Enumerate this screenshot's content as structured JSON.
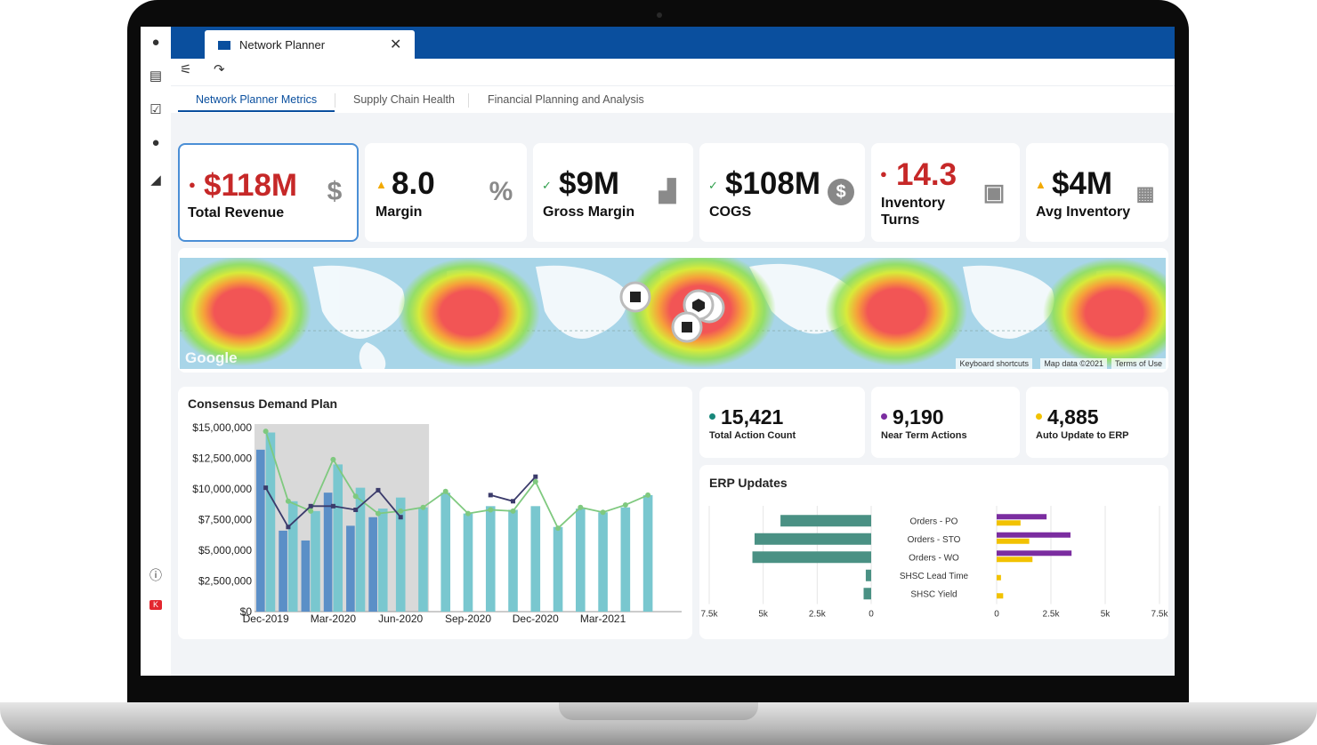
{
  "app": {
    "tab_title": "Network Planner",
    "close_glyph": "✕"
  },
  "tabs": [
    {
      "label": "Network Planner Metrics",
      "active": true
    },
    {
      "label": "Supply Chain Health",
      "active": false
    },
    {
      "label": "Financial Planning and Analysis",
      "active": false
    }
  ],
  "kpis": [
    {
      "value": "$118M",
      "label": "Total Revenue",
      "indicator": "●",
      "status": "red",
      "icon": "hand-dollar-icon"
    },
    {
      "value": "8.0",
      "label": "Margin",
      "indicator": "▲",
      "status": "orange",
      "icon": "percent-icon"
    },
    {
      "value": "$9M",
      "label": "Gross Margin",
      "indicator": "✓",
      "status": "green",
      "icon": "bar-chart-up-icon"
    },
    {
      "value": "$108M",
      "label": "COGS",
      "indicator": "✓",
      "status": "green",
      "icon": "dollar-coin-icon"
    },
    {
      "value": "14.3",
      "label": "Inventory Turns",
      "indicator": "●",
      "status": "red",
      "icon": "box-icon"
    },
    {
      "value": "$4M",
      "label": "Avg Inventory",
      "indicator": "▲",
      "status": "orange",
      "icon": "boxes-icon"
    }
  ],
  "map": {
    "logo": "Google",
    "footer": [
      "Keyboard shortcuts",
      "Map data ©2021",
      "Terms of Use"
    ]
  },
  "demand_plan": {
    "title": "Consensus Demand Plan"
  },
  "actions": [
    {
      "value": "15,421",
      "label": "Total Action Count",
      "color": "#17877a"
    },
    {
      "value": "9,190",
      "label": "Near Term Actions",
      "color": "#7b2da0"
    },
    {
      "value": "4,885",
      "label": "Auto Update to ERP",
      "color": "#f2c200"
    }
  ],
  "erp": {
    "title": "ERP Updates"
  },
  "chart_data": [
    {
      "type": "bar",
      "title": "Consensus Demand Plan",
      "ylim": [
        0,
        15000000
      ],
      "y_ticks": [
        "$0",
        "$2,500,000",
        "$5,000,000",
        "$7,500,000",
        "$10,000,000",
        "$12,500,000",
        "$15,000,000"
      ],
      "x_ticks": [
        "Dec-2019",
        "Mar-2020",
        "Jun-2020",
        "Sep-2020",
        "Dec-2020",
        "Mar-2021"
      ],
      "shaded_period": [
        "Dec-2019",
        "Jul-2020"
      ],
      "categories": [
        "Dec-2019",
        "Jan-2020",
        "Feb-2020",
        "Mar-2020",
        "Apr-2020",
        "May-2020",
        "Jun-2020",
        "Jul-2020",
        "Aug-2020",
        "Sep-2020",
        "Oct-2020",
        "Nov-2020",
        "Dec-2020",
        "Jan-2021",
        "Feb-2021",
        "Mar-2021",
        "Apr-2021",
        "May-2021",
        "Jun-2021"
      ],
      "series": [
        {
          "values": [
            13200000,
            6600000,
            5800000,
            9700000,
            7000000,
            7700000,
            null,
            null,
            null,
            null,
            null,
            null,
            null,
            null,
            null,
            null,
            null,
            null,
            null
          ],
          "color": "#5b8fc7"
        },
        {
          "values": [
            14600000,
            9000000,
            8200000,
            12000000,
            10100000,
            8400000,
            9300000,
            8500000,
            9700000,
            8000000,
            8600000,
            8300000,
            8600000,
            6900000,
            8400000,
            8100000,
            8500000,
            9500000,
            null
          ],
          "color": "#79c7cf"
        },
        {
          "values": [
            14700000,
            9000000,
            8200000,
            12400000,
            9400000,
            8000000,
            8200000,
            8500000,
            9800000,
            8000000,
            8300000,
            8200000,
            10600000,
            6800000,
            8500000,
            8100000,
            8700000,
            9500000,
            null
          ],
          "color": "#7fc97f"
        },
        {
          "values": [
            10100000,
            6900000,
            8600000,
            8600000,
            8300000,
            9900000,
            7700000,
            null,
            null,
            null,
            9500000,
            9000000,
            11000000,
            null,
            null,
            null,
            null,
            null,
            null
          ],
          "color": "#3b3b6b"
        }
      ]
    },
    {
      "type": "bar",
      "title": "ERP Updates",
      "categories": [
        "Orders - PO",
        "Orders - STO",
        "Orders - WO",
        "SHSC Lead Time",
        "SHSC Yield"
      ],
      "left_axis_ticks": [
        "7.5k",
        "5k",
        "2.5k",
        "0"
      ],
      "right_axis_ticks": [
        "0",
        "2.5k",
        "5k",
        "7.5k"
      ],
      "series": [
        {
          "side": "left",
          "values": [
            4200,
            5400,
            5500,
            250,
            350
          ],
          "color": "#4a9184"
        },
        {
          "side": "right",
          "values": [
            2300,
            3400,
            3450,
            0,
            0
          ],
          "color": "#7b2da0"
        },
        {
          "side": "right",
          "values": [
            1100,
            1500,
            1650,
            200,
            300
          ],
          "color": "#f2c200"
        }
      ],
      "xlim": [
        0,
        7500
      ]
    }
  ]
}
